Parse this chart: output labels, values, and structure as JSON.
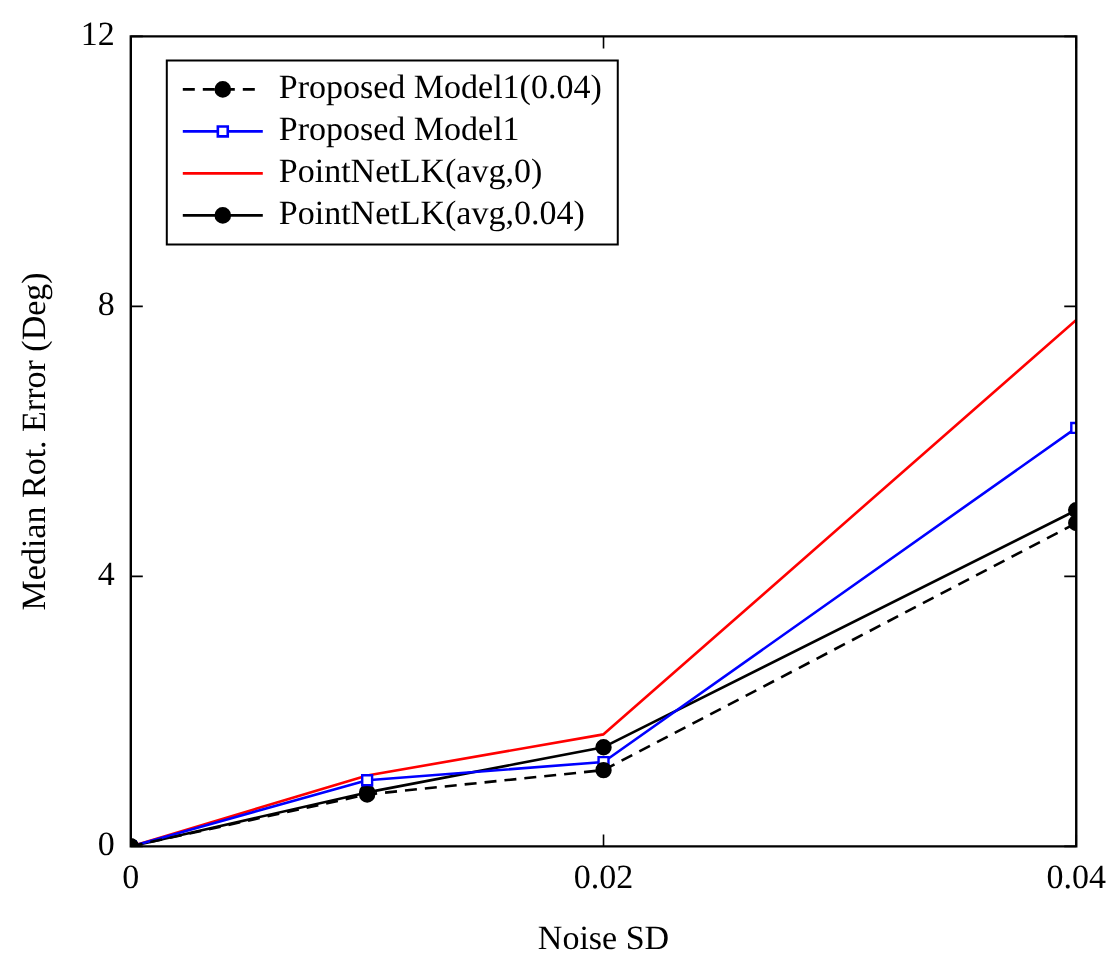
{
  "chart_data": {
    "type": "line",
    "xlabel": "Noise SD",
    "ylabel": "Median Rot. Error (Deg)",
    "x": [
      0,
      0.01,
      0.02,
      0.04
    ],
    "xlim": [
      0,
      0.04
    ],
    "xticks": [
      0,
      0.02,
      0.04
    ],
    "ylim": [
      0,
      12
    ],
    "yticks": [
      0,
      4,
      8,
      12
    ],
    "grid": false,
    "legend": "top left",
    "series": [
      {
        "name": "Proposed Model1(0.04)",
        "color": "#000000",
        "values": [
          0,
          0.77,
          1.13,
          4.79
        ],
        "marker": "circle",
        "line_style": "dashed"
      },
      {
        "name": "Proposed Model1",
        "color": "#0000ff",
        "values": [
          0,
          0.98,
          1.25,
          6.2
        ],
        "marker": "square",
        "line_style": "solid"
      },
      {
        "name": "PointNetLK(avg,0)",
        "color": "#ff0000",
        "values": [
          0,
          1.05,
          1.66,
          7.8
        ],
        "marker": "none",
        "line_style": "solid"
      },
      {
        "name": "PointNetLK(avg,0.04)",
        "color": "#000000",
        "values": [
          0,
          0.8,
          1.47,
          4.98
        ],
        "marker": "circle",
        "line_style": "solid"
      }
    ]
  }
}
